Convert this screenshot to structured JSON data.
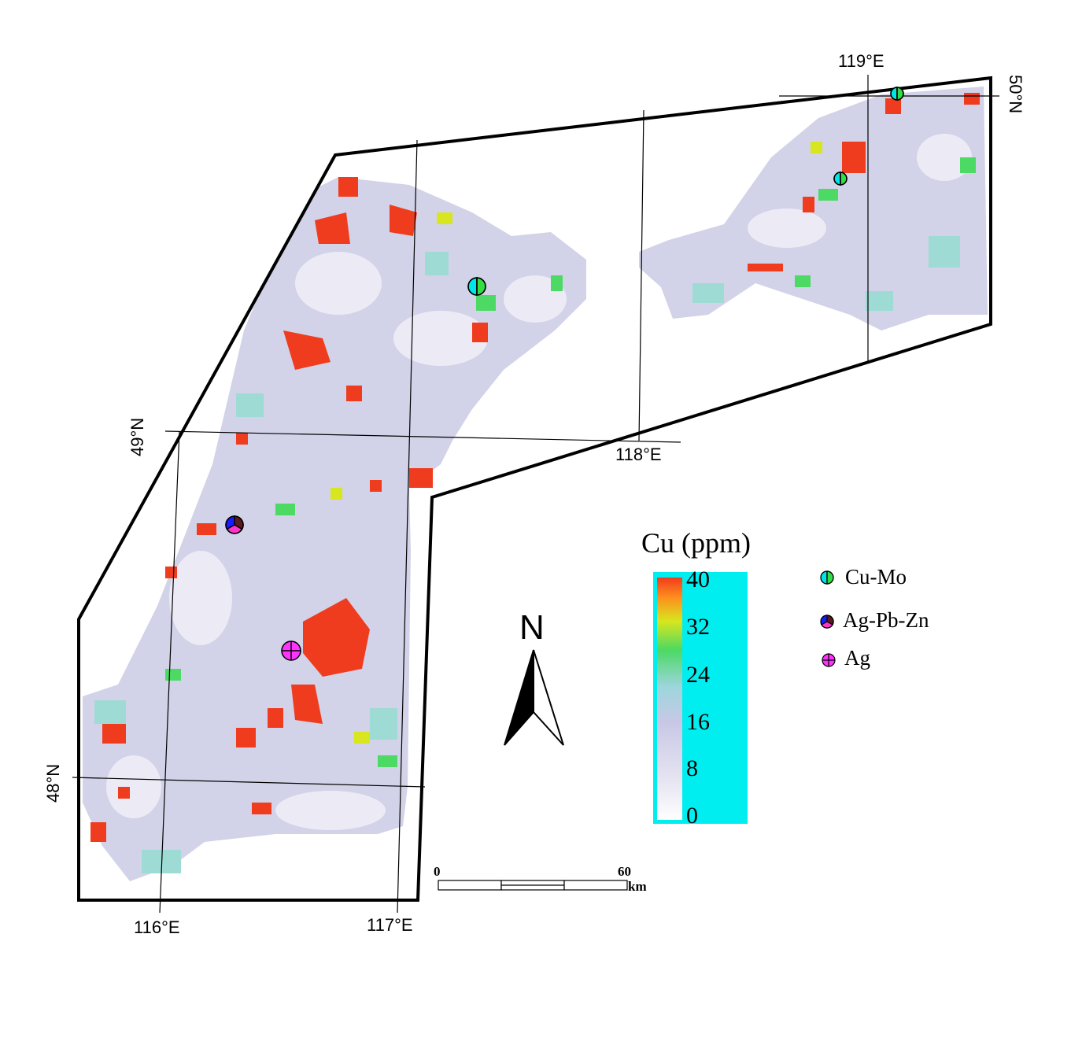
{
  "graticule": {
    "lon_labels": [
      "116°E",
      "117°E",
      "118°E",
      "119°E"
    ],
    "lat_labels": [
      "48°N",
      "49°N",
      "50°N"
    ]
  },
  "legend": {
    "title": "Cu (ppm)",
    "ticks": [
      "40",
      "32",
      "24",
      "16",
      "8",
      "0"
    ],
    "ramp_colors": [
      "#ffffff",
      "#c8c8e6",
      "#b4c3dc",
      "#7fdcd2",
      "#4cd964",
      "#d7e61e",
      "#ff8c1e",
      "#f03c1e"
    ],
    "frame_color": "#00eef0"
  },
  "deposits": [
    {
      "label": "Cu-Mo",
      "icon": "cu-mo-icon"
    },
    {
      "label": "Ag-Pb-Zn",
      "icon": "ag-pb-zn-icon"
    },
    {
      "label": "Ag",
      "icon": "ag-icon"
    }
  ],
  "north_arrow": {
    "label": "N"
  },
  "scale_bar": {
    "start": "0",
    "end": "60",
    "unit": "km"
  }
}
